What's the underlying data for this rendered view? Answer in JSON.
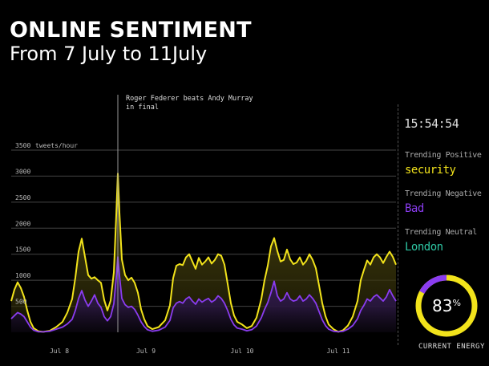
{
  "header": {
    "title": "ONLINE SENTIMENT",
    "subtitle": "From 7 July to 11July"
  },
  "chart_data": {
    "type": "area",
    "ylabel": "tweets/hour",
    "yticks": [
      500,
      1000,
      1500,
      2000,
      2500,
      3000,
      3500
    ],
    "ytick_labels": [
      "500",
      "1000",
      "1500",
      "2000",
      "2500",
      "3000",
      "3500"
    ],
    "ylim": [
      0,
      3500
    ],
    "xlim": [
      0,
      480
    ],
    "xticks": [
      {
        "x": 60,
        "label": "Jul 8"
      },
      {
        "x": 168,
        "label": "Jul 9"
      },
      {
        "x": 288,
        "label": "Jul 10"
      },
      {
        "x": 408,
        "label": "Jul 11"
      }
    ],
    "grid": true,
    "annotation": {
      "x": 133,
      "lines": [
        "Roger Federer beats Andy Murray",
        "in final"
      ]
    },
    "series": [
      {
        "color": "#f2e31b",
        "points": [
          [
            0,
            600
          ],
          [
            4,
            820
          ],
          [
            8,
            960
          ],
          [
            12,
            850
          ],
          [
            16,
            680
          ],
          [
            20,
            420
          ],
          [
            24,
            200
          ],
          [
            28,
            80
          ],
          [
            34,
            20
          ],
          [
            40,
            10
          ],
          [
            48,
            30
          ],
          [
            56,
            100
          ],
          [
            64,
            200
          ],
          [
            70,
            380
          ],
          [
            76,
            640
          ],
          [
            80,
            1050
          ],
          [
            84,
            1550
          ],
          [
            88,
            1800
          ],
          [
            92,
            1450
          ],
          [
            96,
            1100
          ],
          [
            100,
            1030
          ],
          [
            104,
            1060
          ],
          [
            108,
            1000
          ],
          [
            112,
            950
          ],
          [
            116,
            620
          ],
          [
            120,
            420
          ],
          [
            124,
            610
          ],
          [
            128,
            1150
          ],
          [
            131,
            2250
          ],
          [
            133,
            3050
          ],
          [
            135,
            2300
          ],
          [
            138,
            1400
          ],
          [
            142,
            1100
          ],
          [
            146,
            1000
          ],
          [
            150,
            1050
          ],
          [
            154,
            950
          ],
          [
            158,
            760
          ],
          [
            162,
            440
          ],
          [
            166,
            250
          ],
          [
            170,
            120
          ],
          [
            176,
            60
          ],
          [
            184,
            100
          ],
          [
            192,
            230
          ],
          [
            198,
            520
          ],
          [
            202,
            1040
          ],
          [
            206,
            1280
          ],
          [
            210,
            1310
          ],
          [
            214,
            1290
          ],
          [
            218,
            1440
          ],
          [
            222,
            1500
          ],
          [
            226,
            1360
          ],
          [
            230,
            1220
          ],
          [
            234,
            1430
          ],
          [
            238,
            1300
          ],
          [
            242,
            1360
          ],
          [
            246,
            1440
          ],
          [
            250,
            1320
          ],
          [
            254,
            1390
          ],
          [
            258,
            1500
          ],
          [
            262,
            1470
          ],
          [
            266,
            1300
          ],
          [
            270,
            930
          ],
          [
            274,
            560
          ],
          [
            278,
            320
          ],
          [
            282,
            200
          ],
          [
            288,
            150
          ],
          [
            294,
            80
          ],
          [
            300,
            120
          ],
          [
            306,
            280
          ],
          [
            312,
            640
          ],
          [
            316,
            1000
          ],
          [
            320,
            1280
          ],
          [
            324,
            1650
          ],
          [
            328,
            1810
          ],
          [
            332,
            1560
          ],
          [
            336,
            1360
          ],
          [
            340,
            1390
          ],
          [
            344,
            1590
          ],
          [
            348,
            1400
          ],
          [
            352,
            1310
          ],
          [
            356,
            1340
          ],
          [
            360,
            1440
          ],
          [
            364,
            1300
          ],
          [
            368,
            1370
          ],
          [
            372,
            1500
          ],
          [
            376,
            1390
          ],
          [
            380,
            1230
          ],
          [
            384,
            900
          ],
          [
            388,
            560
          ],
          [
            392,
            310
          ],
          [
            396,
            150
          ],
          [
            402,
            60
          ],
          [
            408,
            10
          ],
          [
            414,
            40
          ],
          [
            420,
            130
          ],
          [
            426,
            300
          ],
          [
            432,
            600
          ],
          [
            436,
            1000
          ],
          [
            440,
            1200
          ],
          [
            444,
            1380
          ],
          [
            448,
            1300
          ],
          [
            452,
            1440
          ],
          [
            456,
            1500
          ],
          [
            460,
            1440
          ],
          [
            464,
            1330
          ],
          [
            468,
            1450
          ],
          [
            472,
            1550
          ],
          [
            476,
            1450
          ],
          [
            480,
            1300
          ]
        ]
      },
      {
        "color": "#8a3cf0",
        "points": [
          [
            0,
            260
          ],
          [
            4,
            320
          ],
          [
            8,
            380
          ],
          [
            12,
            350
          ],
          [
            16,
            300
          ],
          [
            20,
            200
          ],
          [
            24,
            100
          ],
          [
            28,
            40
          ],
          [
            34,
            10
          ],
          [
            40,
            10
          ],
          [
            48,
            20
          ],
          [
            56,
            60
          ],
          [
            64,
            100
          ],
          [
            70,
            160
          ],
          [
            76,
            250
          ],
          [
            80,
            420
          ],
          [
            84,
            650
          ],
          [
            88,
            800
          ],
          [
            92,
            620
          ],
          [
            96,
            500
          ],
          [
            100,
            600
          ],
          [
            104,
            720
          ],
          [
            108,
            560
          ],
          [
            112,
            480
          ],
          [
            116,
            300
          ],
          [
            120,
            220
          ],
          [
            124,
            300
          ],
          [
            128,
            550
          ],
          [
            131,
            1050
          ],
          [
            133,
            1450
          ],
          [
            135,
            1100
          ],
          [
            138,
            650
          ],
          [
            142,
            530
          ],
          [
            146,
            480
          ],
          [
            150,
            500
          ],
          [
            154,
            440
          ],
          [
            158,
            330
          ],
          [
            162,
            200
          ],
          [
            166,
            110
          ],
          [
            170,
            50
          ],
          [
            176,
            20
          ],
          [
            184,
            40
          ],
          [
            192,
            100
          ],
          [
            198,
            230
          ],
          [
            202,
            470
          ],
          [
            206,
            560
          ],
          [
            210,
            590
          ],
          [
            214,
            560
          ],
          [
            218,
            640
          ],
          [
            222,
            680
          ],
          [
            226,
            600
          ],
          [
            230,
            540
          ],
          [
            234,
            640
          ],
          [
            238,
            580
          ],
          [
            242,
            620
          ],
          [
            246,
            650
          ],
          [
            250,
            580
          ],
          [
            254,
            620
          ],
          [
            258,
            700
          ],
          [
            262,
            650
          ],
          [
            266,
            560
          ],
          [
            270,
            420
          ],
          [
            274,
            250
          ],
          [
            278,
            140
          ],
          [
            282,
            80
          ],
          [
            288,
            60
          ],
          [
            294,
            30
          ],
          [
            300,
            50
          ],
          [
            306,
            120
          ],
          [
            312,
            280
          ],
          [
            316,
            440
          ],
          [
            320,
            570
          ],
          [
            324,
            760
          ],
          [
            328,
            980
          ],
          [
            332,
            700
          ],
          [
            336,
            600
          ],
          [
            340,
            640
          ],
          [
            344,
            760
          ],
          [
            348,
            640
          ],
          [
            352,
            600
          ],
          [
            356,
            620
          ],
          [
            360,
            700
          ],
          [
            364,
            600
          ],
          [
            368,
            640
          ],
          [
            372,
            720
          ],
          [
            376,
            650
          ],
          [
            380,
            560
          ],
          [
            384,
            400
          ],
          [
            388,
            240
          ],
          [
            392,
            130
          ],
          [
            396,
            60
          ],
          [
            402,
            20
          ],
          [
            408,
            10
          ],
          [
            414,
            20
          ],
          [
            420,
            60
          ],
          [
            426,
            130
          ],
          [
            432,
            260
          ],
          [
            436,
            420
          ],
          [
            440,
            520
          ],
          [
            444,
            640
          ],
          [
            448,
            600
          ],
          [
            452,
            680
          ],
          [
            456,
            720
          ],
          [
            460,
            660
          ],
          [
            464,
            600
          ],
          [
            468,
            680
          ],
          [
            472,
            820
          ],
          [
            476,
            700
          ],
          [
            480,
            600
          ]
        ]
      }
    ]
  },
  "sidebar": {
    "time": "15:54:54",
    "trends": [
      {
        "label": "Trending Positive",
        "value": "security",
        "color": "#f2e31b"
      },
      {
        "label": "Trending Negative",
        "value": "Bad",
        "color": "#8a3cf0"
      },
      {
        "label": "Trending Neutral",
        "value": "London",
        "color": "#2ec7a4"
      }
    ],
    "energy": {
      "value": 83,
      "percent_sign": "%",
      "label": "CURRENT ENERGY",
      "ring_color": "#f2e31b",
      "accent_color": "#8a3cf0"
    }
  }
}
